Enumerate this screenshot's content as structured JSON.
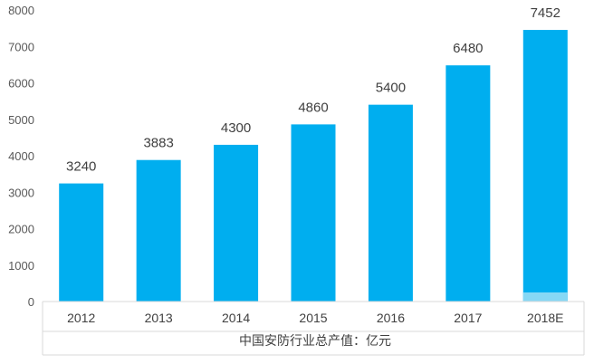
{
  "chart_data": {
    "type": "bar",
    "categories": [
      "2012",
      "2013",
      "2014",
      "2015",
      "2016",
      "2017",
      "2018E"
    ],
    "values": [
      3240,
      3883,
      4300,
      4860,
      5400,
      6480,
      7452
    ],
    "data_labels": [
      "3240",
      "3883",
      "4300",
      "4860",
      "5400",
      "6480",
      "7452"
    ],
    "ylim": [
      0,
      8000
    ],
    "yticks": [
      0,
      1000,
      2000,
      3000,
      4000,
      5000,
      6000,
      7000,
      8000
    ],
    "ytick_labels": [
      "0",
      "1000",
      "2000",
      "3000",
      "4000",
      "5000",
      "6000",
      "7000",
      "8000"
    ],
    "grid": false,
    "legend": "none",
    "caption": "中国安防行业总产值：亿元",
    "colors": {
      "bar": "#00AEEF",
      "estimate_bottom": "#86D8F5",
      "axis": "#D9D9D9",
      "text": "#404040"
    },
    "estimate_index": 6,
    "estimate_bottom_value": 250
  }
}
